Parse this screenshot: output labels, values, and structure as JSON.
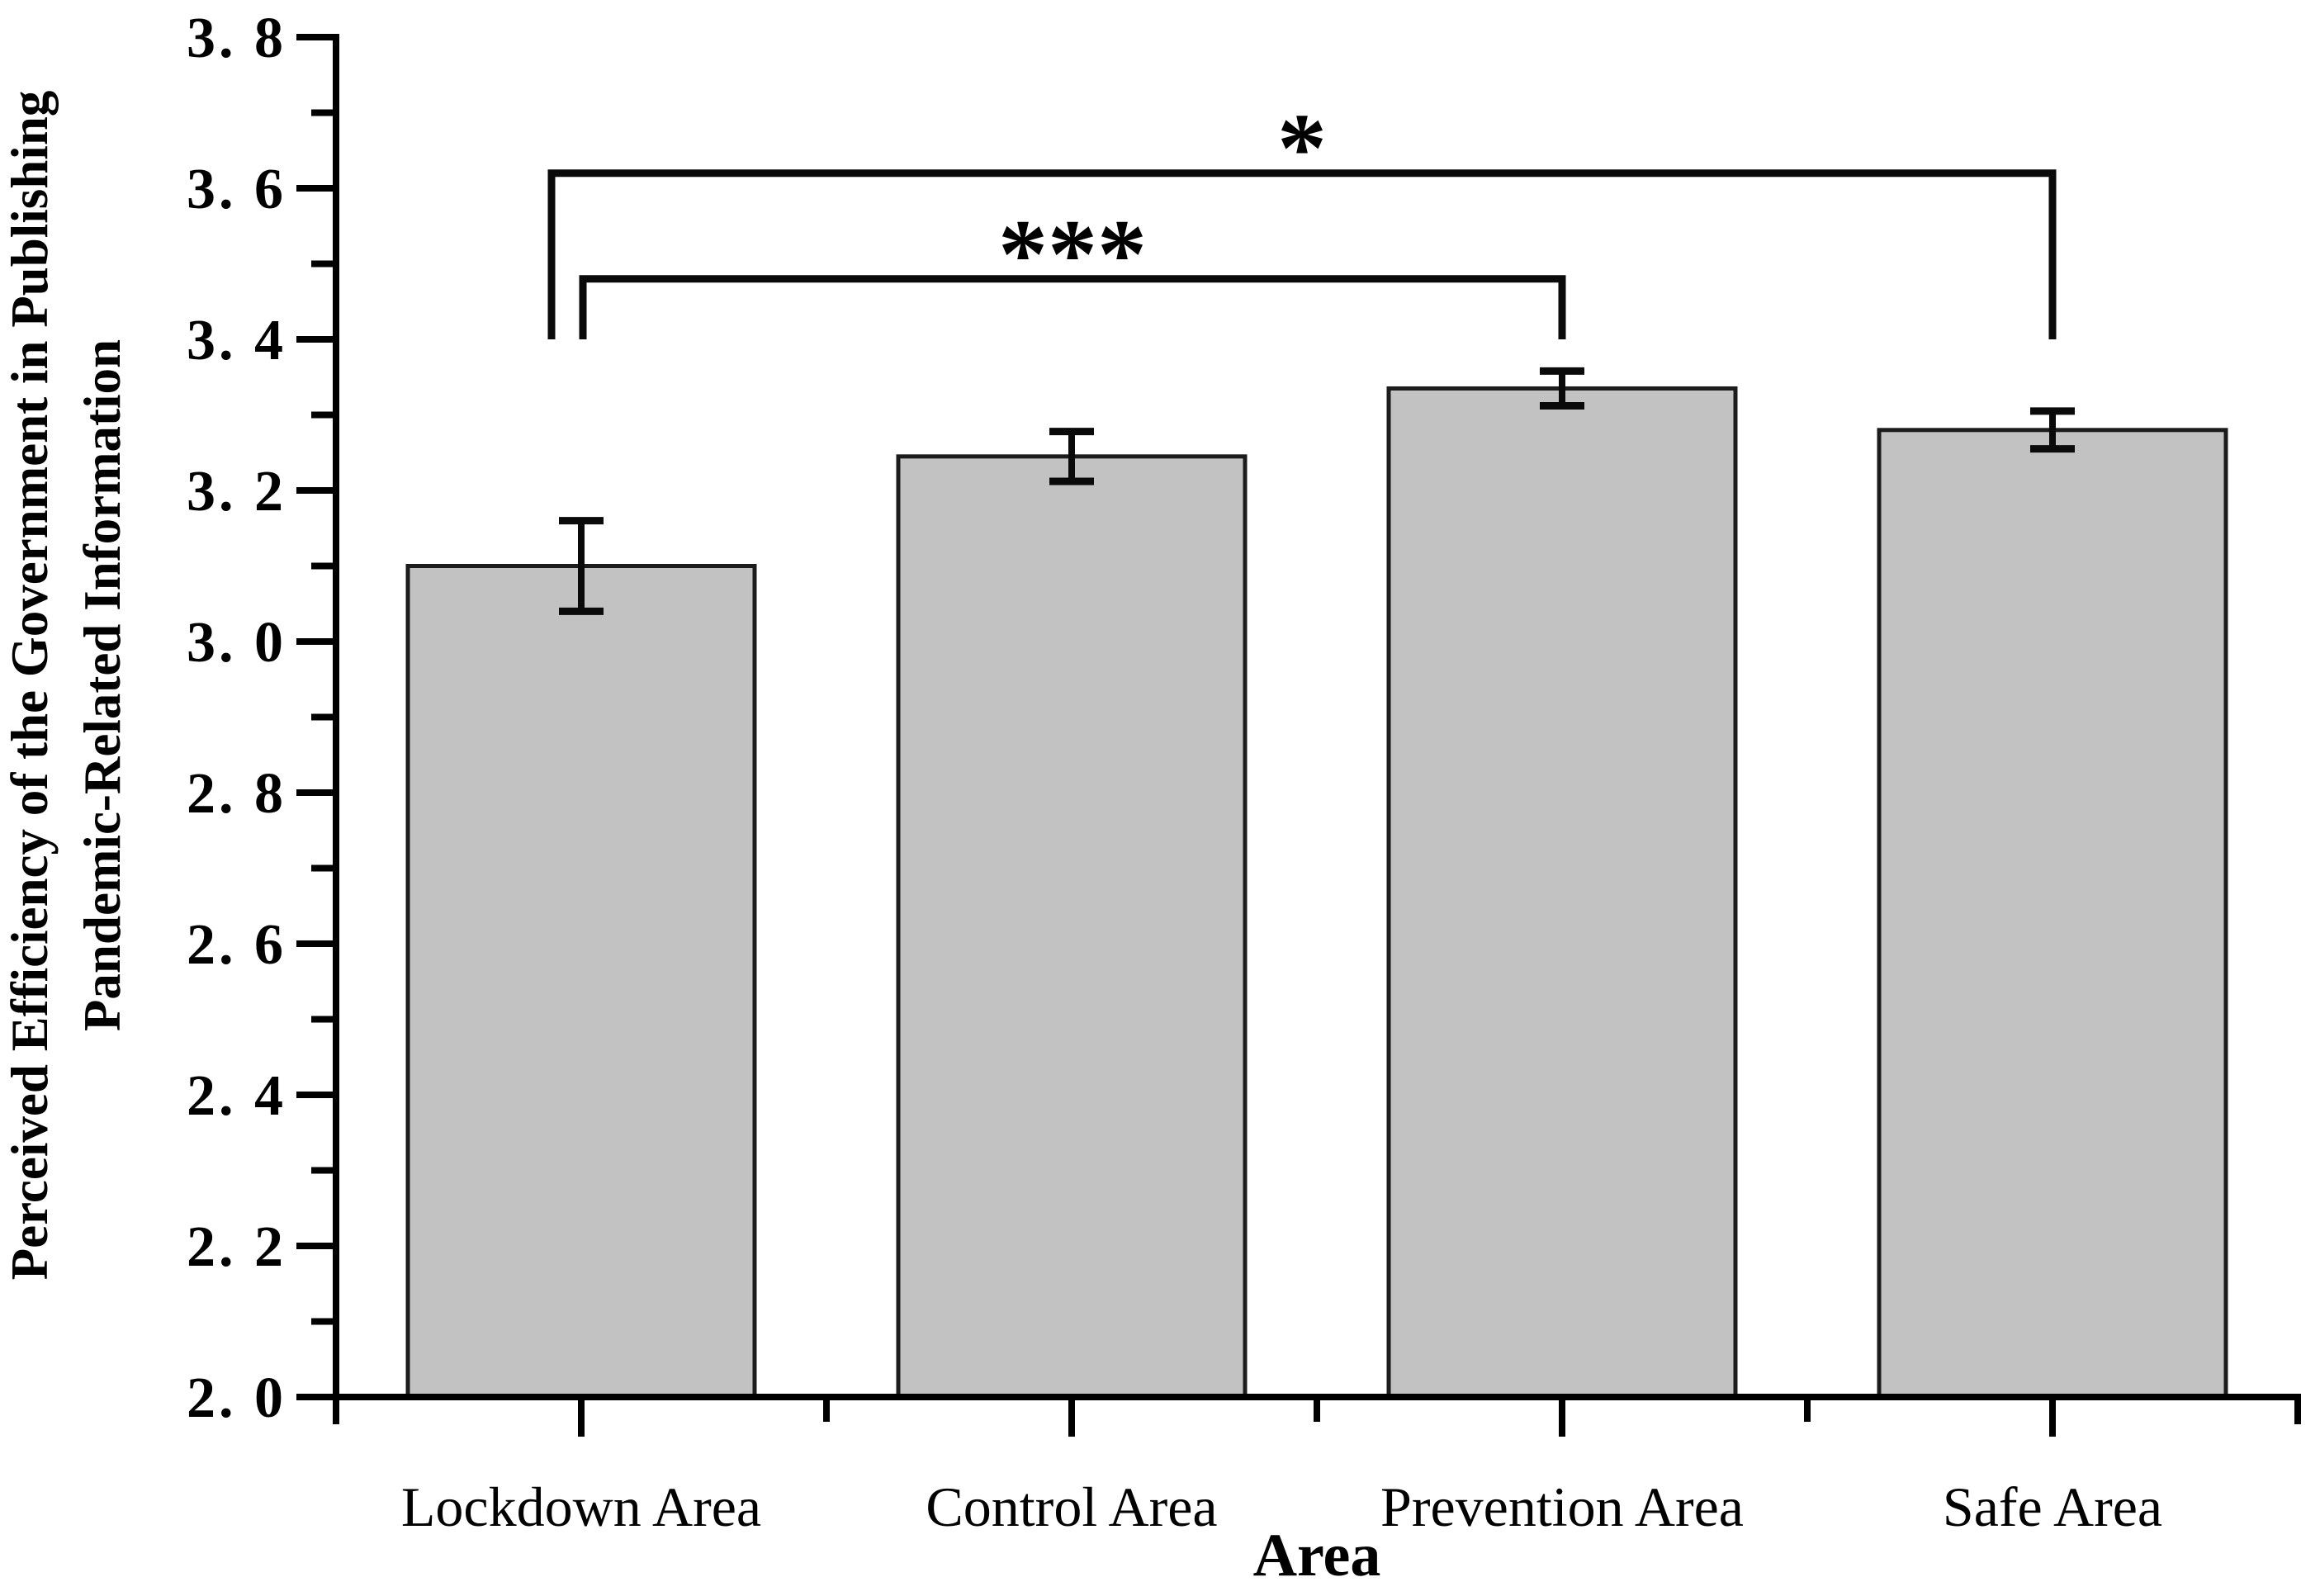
{
  "figure": {
    "y_axis_label_line1": "Perceived Efficiency of the Government in Publishing",
    "y_axis_label_line2": "Pandemic-Related Information",
    "x_axis_title": "Area"
  },
  "chart_data": {
    "type": "bar",
    "title": "",
    "xlabel": "Area",
    "ylabel": "Perceived Efficiency of the Government in Publishing Pandemic-Related Information",
    "categories": [
      "Lockdown Area",
      "Control Area",
      "Prevention Area",
      "Safe Area"
    ],
    "values": [
      3.1,
      3.245,
      3.335,
      3.28
    ],
    "error_bars": [
      0.06,
      0.033,
      0.023,
      0.025
    ],
    "ylim": [
      2.0,
      3.8
    ],
    "y_major_tick_step": 0.2,
    "y_minor_tick_step": 0.1,
    "y_tick_labels": [
      "2. 0",
      "2. 2",
      "2. 4",
      "2. 6",
      "2. 8",
      "3. 0",
      "3. 2",
      "3. 4",
      "3. 6",
      "3. 8"
    ],
    "grid": false,
    "legend": "none",
    "colors": {
      "bar_fill": "#c2c2c2",
      "bar_stroke": "#1c1c1c",
      "axis_stroke": "#000000",
      "error_stroke": "#0a0a0a",
      "bracket_stroke": "#0a0a0a",
      "background": "#ffffff"
    },
    "significance_brackets": [
      {
        "label": "***",
        "from_category": "Lockdown Area",
        "to_category": "Prevention Area",
        "level_value": 3.48,
        "drop_to_value": 3.4
      },
      {
        "label": "*",
        "from_category": "Lockdown Area",
        "to_category": "Safe Area",
        "level_value": 3.62,
        "drop_to_value": 3.4
      }
    ]
  }
}
